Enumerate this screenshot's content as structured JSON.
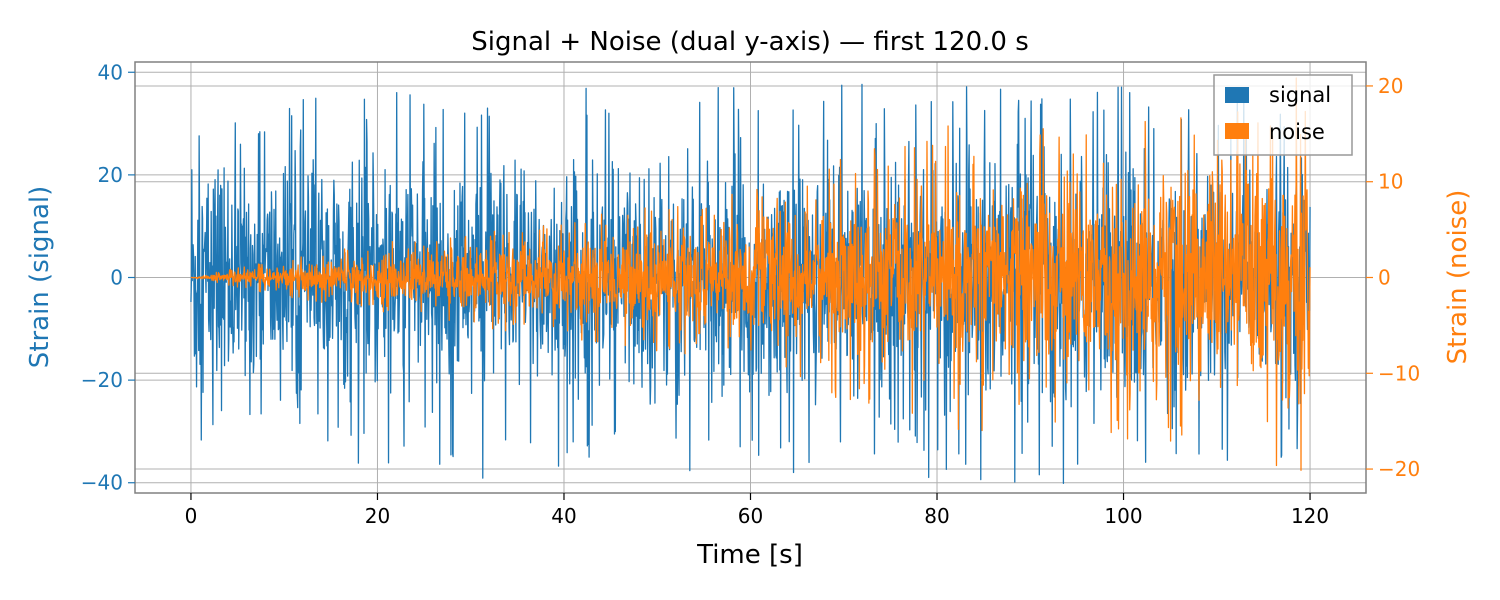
{
  "chart_data": {
    "type": "line",
    "title": "Signal + Noise (dual y-axis) — first 120.0 s",
    "xlabel": "Time [s]",
    "xlim": [
      -6,
      126
    ],
    "xticks": [
      0,
      20,
      40,
      60,
      80,
      100,
      120
    ],
    "left_axis": {
      "label": "Strain (signal)",
      "ylim": [
        -42,
        42
      ],
      "ticks": [
        -40,
        -20,
        0,
        20,
        40
      ],
      "tick_labels": [
        "−40",
        "−20",
        "0",
        "20",
        "40"
      ],
      "color": "#1f77b4"
    },
    "right_axis": {
      "label": "Strain (noise)",
      "ylim": [
        -22.5,
        22.5
      ],
      "ticks": [
        -20,
        -10,
        0,
        10,
        20
      ],
      "tick_labels": [
        "−20",
        "−10",
        "0",
        "10",
        "20"
      ],
      "color": "#ff7f0e"
    },
    "grid": true,
    "legend": {
      "location": "top-right",
      "entries": [
        "signal",
        "noise"
      ]
    },
    "series": [
      {
        "name": "signal",
        "axis": "left",
        "color": "#1f77b4",
        "envelope": {
          "x": [
            0,
            1,
            5,
            10,
            20,
            27.5,
            40,
            60,
            67.5,
            80,
            91.5,
            100,
            110,
            120
          ],
          "typical_amplitude": [
            28,
            22,
            20,
            20,
            20,
            20,
            20,
            20,
            21,
            21,
            22,
            21,
            21,
            20
          ],
          "peak_max": [
            29,
            34,
            30,
            35,
            37,
            36,
            37,
            37,
            38,
            37,
            38,
            38,
            37,
            34
          ],
          "peak_min": [
            -28,
            -33,
            -32,
            -34,
            -37,
            -40,
            -37,
            -38,
            -38,
            -40,
            -41,
            -39,
            -38,
            -36
          ]
        }
      },
      {
        "name": "noise",
        "axis": "right",
        "color": "#ff7f0e",
        "envelope": {
          "x": [
            0,
            10,
            20,
            40,
            60,
            70,
            80,
            90,
            100,
            110,
            118.5,
            120
          ],
          "typical_amplitude": [
            0,
            1.2,
            2.2,
            4,
            5.5,
            7,
            8,
            9,
            10,
            11,
            11.5,
            10
          ],
          "peak_max": [
            0,
            2,
            3.5,
            6.5,
            9,
            13,
            16,
            16,
            17,
            17,
            22.5,
            16
          ],
          "peak_min": [
            0,
            -2,
            -3.5,
            -6.5,
            -9,
            -13,
            -16,
            -16,
            -17,
            -18,
            -22.5,
            -16
          ]
        }
      }
    ]
  }
}
